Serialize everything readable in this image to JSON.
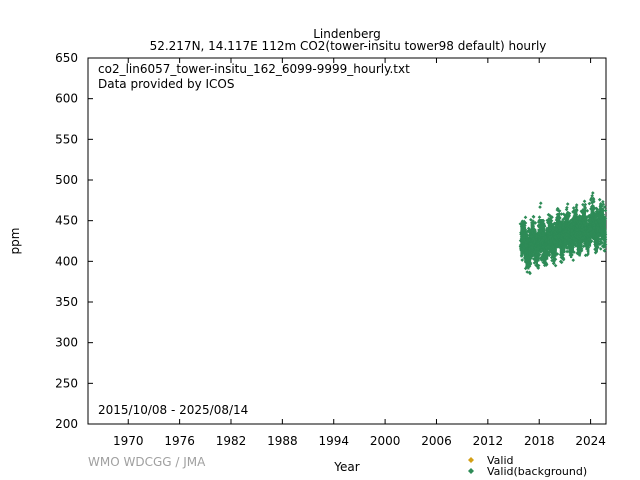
{
  "header": {
    "station": "Lindenberg",
    "subtitle": "52.217N, 14.117E 112m    CO2(tower-insitu tower98 default) hourly"
  },
  "annotations": {
    "file": "co2_lin6057_tower-insitu_162_6099-9999_hourly.txt",
    "provider": "Data provided by ICOS",
    "period": "2015/10/08 - 2025/08/14"
  },
  "credit": "WMO WDCGG / JMA",
  "chart_data": {
    "type": "scatter",
    "xlabel": "Year",
    "ylabel": "ppm",
    "xlim": [
      1965.3,
      2025.8
    ],
    "ylim": [
      200,
      650
    ],
    "xticks": [
      1970,
      1976,
      1982,
      1988,
      1994,
      2000,
      2006,
      2012,
      2018,
      2024
    ],
    "yticks": [
      200,
      250,
      300,
      350,
      400,
      450,
      500,
      550,
      600,
      650
    ],
    "grid": false,
    "legend_position": "bottom-right",
    "legend": [
      {
        "name": "Valid",
        "color": "#d4a017",
        "marker": "diamond"
      },
      {
        "name": "Valid(background)",
        "color": "#2e8b57",
        "marker": "diamond"
      }
    ],
    "series": [
      {
        "name": "Valid(background)",
        "color": "#2e8b57",
        "x": [
          2015.8,
          2016.0,
          2016.2,
          2016.4,
          2016.6,
          2016.8,
          2017.0,
          2017.2,
          2017.4,
          2017.6,
          2017.8,
          2018.0,
          2018.2,
          2018.4,
          2018.6,
          2018.8,
          2019.0,
          2019.2,
          2019.4,
          2019.6,
          2019.8,
          2020.0,
          2020.2,
          2020.4,
          2020.6,
          2020.8,
          2021.0,
          2021.2,
          2021.4,
          2021.6,
          2021.8,
          2022.0,
          2022.2,
          2022.4,
          2022.6,
          2022.8,
          2023.0,
          2023.2,
          2023.4,
          2023.6,
          2023.8,
          2024.0,
          2024.2,
          2024.4,
          2024.6,
          2024.8,
          2025.0,
          2025.2,
          2025.5
        ],
        "ymin": [
          398,
          400,
          398,
          388,
          384,
          378,
          396,
          398,
          392,
          386,
          384,
          399,
          400,
          394,
          388,
          388,
          402,
          403,
          396,
          390,
          392,
          403,
          404,
          398,
          395,
          396,
          406,
          407,
          401,
          397,
          399,
          408,
          410,
          403,
          400,
          402,
          410,
          412,
          405,
          402,
          404,
          413,
          414,
          408,
          404,
          406,
          415,
          416,
          410
        ],
        "ymax": [
          460,
          463,
          458,
          448,
          446,
          452,
          462,
          464,
          456,
          450,
          455,
          474,
          465,
          458,
          452,
          460,
          466,
          468,
          460,
          455,
          461,
          470,
          472,
          462,
          458,
          466,
          474,
          476,
          466,
          460,
          468,
          478,
          480,
          468,
          464,
          472,
          482,
          478,
          470,
          466,
          474,
          485,
          490,
          476,
          470,
          478,
          488,
          480,
          474
        ],
        "ytypical": [
          425,
          428,
          422,
          412,
          410,
          418,
          428,
          430,
          420,
          414,
          420,
          432,
          432,
          424,
          416,
          422,
          434,
          434,
          426,
          418,
          426,
          436,
          437,
          428,
          422,
          430,
          438,
          440,
          430,
          424,
          432,
          442,
          443,
          432,
          426,
          436,
          445,
          444,
          434,
          428,
          438,
          448,
          449,
          438,
          432,
          440,
          450,
          446,
          436
        ]
      }
    ]
  }
}
